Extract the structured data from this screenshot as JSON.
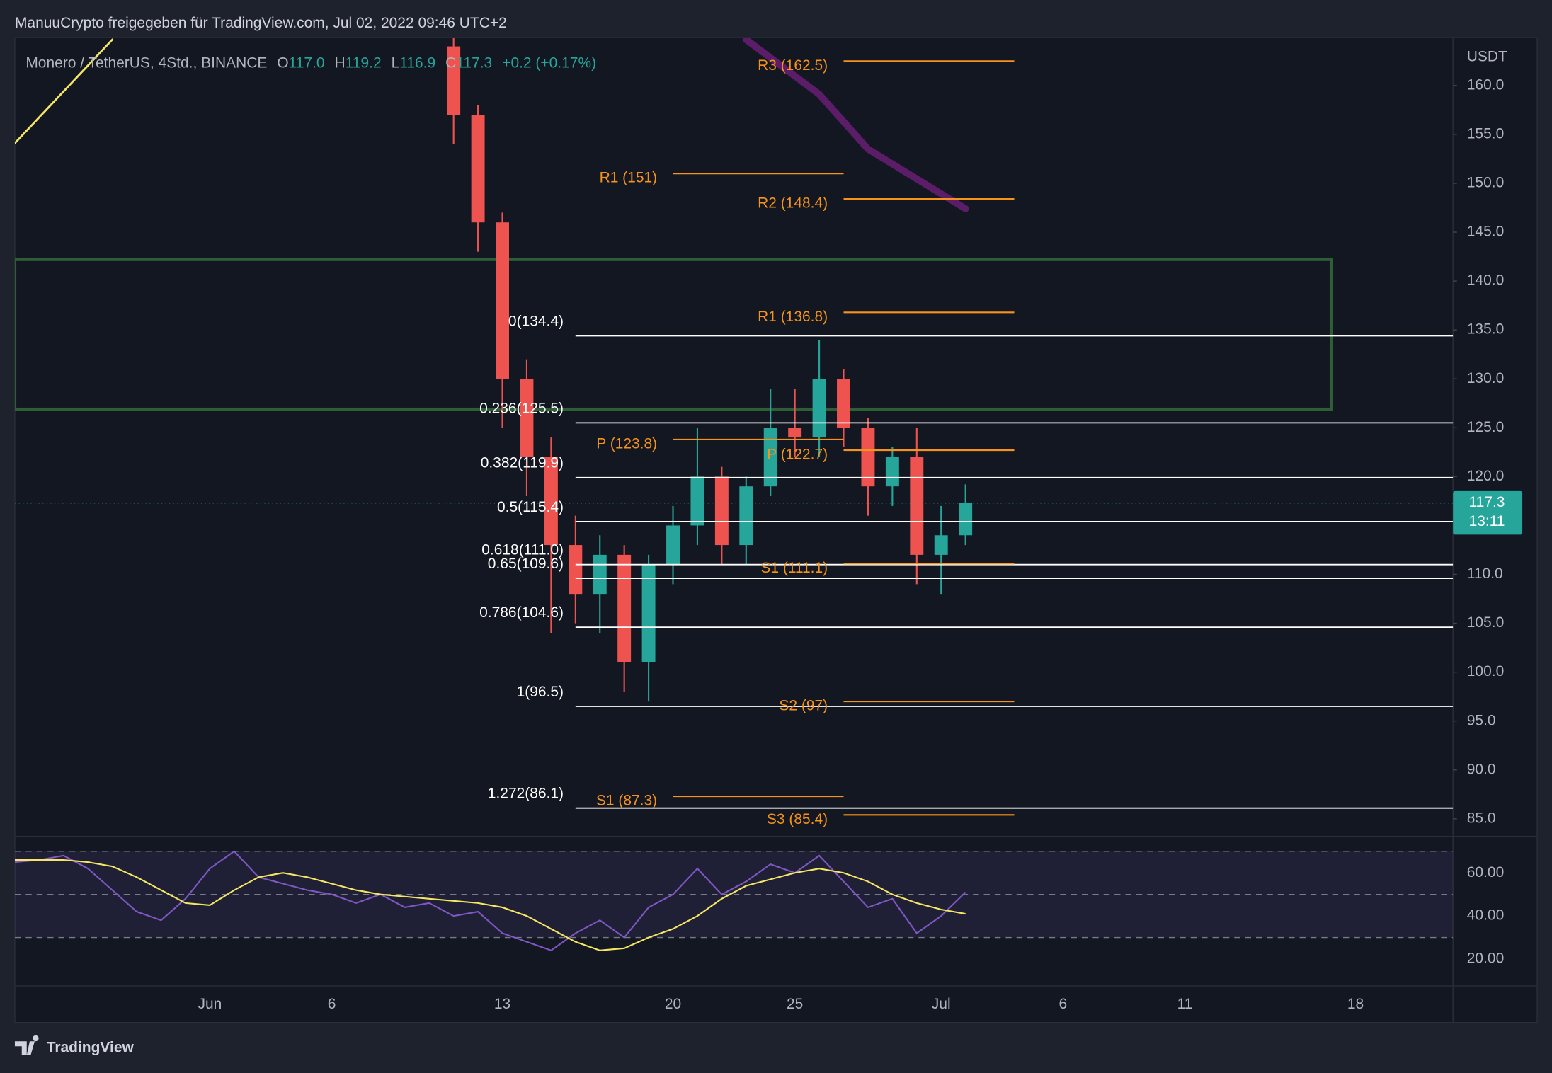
{
  "header": {
    "title": "ManuuCrypto freigegeben für TradingView.com, Jul 02, 2022 09:46 UTC+2"
  },
  "footer": {
    "brand": "TradingView"
  },
  "chart_data": [
    {
      "type": "candlestick",
      "legend": {
        "symbol": "Monero / TetherUS, 4Std., BINANCE",
        "o_label": "O",
        "open": "117.0",
        "h_label": "H",
        "high": "119.2",
        "l_label": "L",
        "low": "116.9",
        "c_label": "C",
        "close": "117.3",
        "change": "+0.2 (+0.17%)"
      },
      "axis_unit": "USDT",
      "x": [
        "2022-06-11",
        "2022-06-12",
        "2022-06-13",
        "2022-06-14",
        "2022-06-15",
        "2022-06-16",
        "2022-06-17",
        "2022-06-18",
        "2022-06-19",
        "2022-06-20",
        "2022-06-21",
        "2022-06-22",
        "2022-06-23",
        "2022-06-24",
        "2022-06-25",
        "2022-06-26",
        "2022-06-27",
        "2022-06-28",
        "2022-06-29",
        "2022-06-30",
        "2022-07-01",
        "2022-07-02"
      ],
      "open": [
        164,
        157,
        146,
        130,
        122,
        113,
        108,
        112,
        101,
        111,
        115,
        120,
        113,
        119,
        125,
        124,
        130,
        125,
        119,
        122,
        112,
        114
      ],
      "high": [
        165,
        158,
        147,
        132,
        124,
        116,
        114,
        113,
        112,
        117,
        125,
        121,
        120,
        129,
        129,
        134,
        131,
        126,
        123,
        125,
        117,
        119.2
      ],
      "low": [
        154,
        143,
        125,
        118,
        104,
        105,
        104,
        98,
        97,
        109,
        113,
        111,
        111,
        118,
        122,
        122,
        123,
        116,
        117,
        109,
        108,
        113
      ],
      "close": [
        157,
        146,
        130,
        122,
        113,
        108,
        112,
        101,
        111,
        115,
        120,
        113,
        119,
        125,
        124,
        130,
        125,
        119,
        122,
        112,
        114,
        117.3
      ],
      "up_color": "#26a69a",
      "down_color": "#ef5350",
      "last_price": {
        "value": 117.3,
        "label": "117.3",
        "countdown": "13:11",
        "color": "#26a69a"
      },
      "xlim": [
        "2022-05-24",
        "2022-07-22"
      ],
      "xticks": [
        {
          "value": "2022-06-01",
          "label": "Jun"
        },
        {
          "value": "2022-06-06",
          "label": "6"
        },
        {
          "value": "2022-06-13",
          "label": "13"
        },
        {
          "value": "2022-06-20",
          "label": "20"
        },
        {
          "value": "2022-06-25",
          "label": "25"
        },
        {
          "value": "2022-07-01",
          "label": "Jul"
        },
        {
          "value": "2022-07-06",
          "label": "6"
        },
        {
          "value": "2022-07-11",
          "label": "11"
        },
        {
          "value": "2022-07-18",
          "label": "18"
        }
      ],
      "ylim": [
        83.4,
        164.9
      ],
      "yticks": [
        {
          "value": 160,
          "label": "160.0"
        },
        {
          "value": 155,
          "label": "155.0"
        },
        {
          "value": 150,
          "label": "150.0"
        },
        {
          "value": 145,
          "label": "145.0"
        },
        {
          "value": 140,
          "label": "140.0"
        },
        {
          "value": 135,
          "label": "135.0"
        },
        {
          "value": 130,
          "label": "130.0"
        },
        {
          "value": 125,
          "label": "125.0"
        },
        {
          "value": 120,
          "label": "120.0"
        },
        {
          "value": 115,
          "label": "115.0"
        },
        {
          "value": 110,
          "label": "110.0"
        },
        {
          "value": 105,
          "label": "105.0"
        },
        {
          "value": 100,
          "label": "100.0"
        },
        {
          "value": 95,
          "label": "95.0"
        },
        {
          "value": 90,
          "label": "90.0"
        },
        {
          "value": 85,
          "label": "85.0"
        }
      ],
      "fib_levels": {
        "color": "#ffffff",
        "start": "2022-06-16",
        "levels": [
          {
            "label": "0(134.4)",
            "value": 134.4
          },
          {
            "label": "0.236(125.5)",
            "value": 125.5
          },
          {
            "label": "0.382(119.9)",
            "value": 119.9
          },
          {
            "label": "0.5(115.4)",
            "value": 115.4
          },
          {
            "label": "0.618(111.0)",
            "value": 111.0
          },
          {
            "label": "0.65(109.6)",
            "value": 109.6
          },
          {
            "label": "0.786(104.6)",
            "value": 104.6
          },
          {
            "label": "1(96.5)",
            "value": 96.5
          },
          {
            "label": "1.272(86.1)",
            "value": 86.1
          }
        ]
      },
      "pivots": [
        {
          "color": "#f7931a",
          "start": "2022-06-20",
          "end": "2022-06-27",
          "levels": [
            {
              "label": "R1 (151)",
              "value": 151
            },
            {
              "label": "P (123.8)",
              "value": 123.8
            },
            {
              "label": "S1 (87.3)",
              "value": 87.3
            }
          ]
        },
        {
          "color": "#f7931a",
          "start": "2022-06-27",
          "end": "2022-07-04",
          "levels": [
            {
              "label": "R3 (162.5)",
              "value": 162.5
            },
            {
              "label": "R2 (148.4)",
              "value": 148.4
            },
            {
              "label": "R1 (136.8)",
              "value": 136.8
            },
            {
              "label": "P (122.7)",
              "value": 122.7
            },
            {
              "label": "S1 (111.1)",
              "value": 111.1
            },
            {
              "label": "S2 (97)",
              "value": 97
            },
            {
              "label": "S3 (85.4)",
              "value": 85.4
            }
          ]
        }
      ],
      "zone": {
        "color": "#2e5e36",
        "top": 142.2,
        "bottom": 126.9,
        "end": "2022-07-17"
      },
      "trend_line": {
        "color": "#f5e663",
        "x": [
          "2022-05-24",
          "2022-05-28"
        ],
        "values": [
          154.1,
          164.7
        ]
      },
      "moving_average": {
        "color": "#5b1c68",
        "x": [
          "2022-06-23",
          "2022-06-26",
          "2022-06-28",
          "2022-07-02"
        ],
        "values": [
          164.7,
          159.1,
          153.5,
          147.4
        ]
      }
    },
    {
      "type": "rsi",
      "x": [
        "2022-05-24",
        "2022-05-25",
        "2022-05-26",
        "2022-05-27",
        "2022-05-28",
        "2022-05-29",
        "2022-05-30",
        "2022-05-31",
        "2022-06-01",
        "2022-06-02",
        "2022-06-03",
        "2022-06-04",
        "2022-06-05",
        "2022-06-06",
        "2022-06-07",
        "2022-06-08",
        "2022-06-09",
        "2022-06-10",
        "2022-06-11",
        "2022-06-12",
        "2022-06-13",
        "2022-06-14",
        "2022-06-15",
        "2022-06-16",
        "2022-06-17",
        "2022-06-18",
        "2022-06-19",
        "2022-06-20",
        "2022-06-21",
        "2022-06-22",
        "2022-06-23",
        "2022-06-24",
        "2022-06-25",
        "2022-06-26",
        "2022-06-27",
        "2022-06-28",
        "2022-06-29",
        "2022-06-30",
        "2022-07-01",
        "2022-07-02"
      ],
      "series": [
        {
          "color": "#7e57c2",
          "values": [
            65,
            66,
            68,
            62,
            52,
            42,
            38,
            48,
            62,
            70,
            58,
            55,
            52,
            50,
            46,
            50,
            44,
            46,
            40,
            42,
            32,
            28,
            24,
            32,
            38,
            30,
            44,
            50,
            62,
            50,
            56,
            64,
            60,
            68,
            56,
            44,
            48,
            32,
            40,
            51
          ]
        },
        {
          "color": "#f5e663",
          "values": [
            66,
            66,
            66,
            65,
            63,
            58,
            52,
            46,
            45,
            52,
            58,
            60,
            58,
            55,
            52,
            50,
            49,
            48,
            47,
            46,
            44,
            40,
            34,
            28,
            24,
            25,
            30,
            34,
            40,
            48,
            54,
            57,
            60,
            62,
            60,
            56,
            50,
            46,
            43,
            41
          ]
        }
      ],
      "bands": [
        70,
        50,
        30
      ],
      "band_fill": "rgba(126,87,194,0.12)",
      "xlim": [
        "2022-05-24",
        "2022-07-22"
      ],
      "ylim": [
        8,
        76
      ],
      "yticks": [
        {
          "value": 60,
          "label": "60.00"
        },
        {
          "value": 40,
          "label": "40.00"
        },
        {
          "value": 20,
          "label": "20.00"
        }
      ]
    }
  ]
}
